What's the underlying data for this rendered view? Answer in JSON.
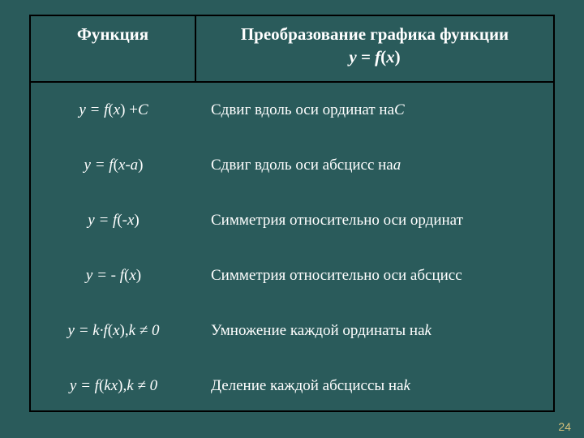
{
  "header": {
    "left": "Функция",
    "right_l1": "Преобразование графика функции",
    "right_l2_pre": "y = f",
    "right_l2_par": "(",
    "right_l2_x": "x",
    "right_l2_close": ")"
  },
  "rows": [
    {
      "left_pre": "y = f",
      "left_par": "(",
      "left_x": "x",
      "left_mid": ") + ",
      "left_c": "C",
      "right_pre": "Сдвиг вдоль оси ординат на ",
      "right_em": "С"
    },
    {
      "left_pre": "y = f",
      "left_par": "(",
      "left_x": "x",
      "left_mid": " - ",
      "left_a": "a",
      "left_close": ")",
      "right_pre": "Сдвиг вдоль оси абсцисс на ",
      "right_em": "а"
    },
    {
      "left_pre": "y = f",
      "left_par": "(- ",
      "left_x": "x",
      "left_close": ")",
      "right": "Симметрия относительно оси ординат"
    },
    {
      "left_pre": "y =  - f",
      "left_par": "(",
      "left_x": "x",
      "left_close": ")",
      "right": "Симметрия относительно оси абсцисс"
    },
    {
      "left_k": "y = k·f",
      "left_par": "(",
      "left_x": "x",
      "left_mid": "), ",
      "left_kne": "k ≠ 0",
      "right_pre": "Умножение каждой ординаты на ",
      "right_em": "k"
    },
    {
      "left_pre": "y = f",
      "left_par": "(",
      "left_kx": "kx",
      "left_mid": "), ",
      "left_kne": "k ≠ 0",
      "right_pre": "Деление каждой абсциссы на ",
      "right_em": "k"
    }
  ],
  "page_number": "24",
  "colors": {
    "background": "#2a5b5b",
    "border": "#000000",
    "text": "#ffffff",
    "pagenum": "#d4c07a"
  }
}
